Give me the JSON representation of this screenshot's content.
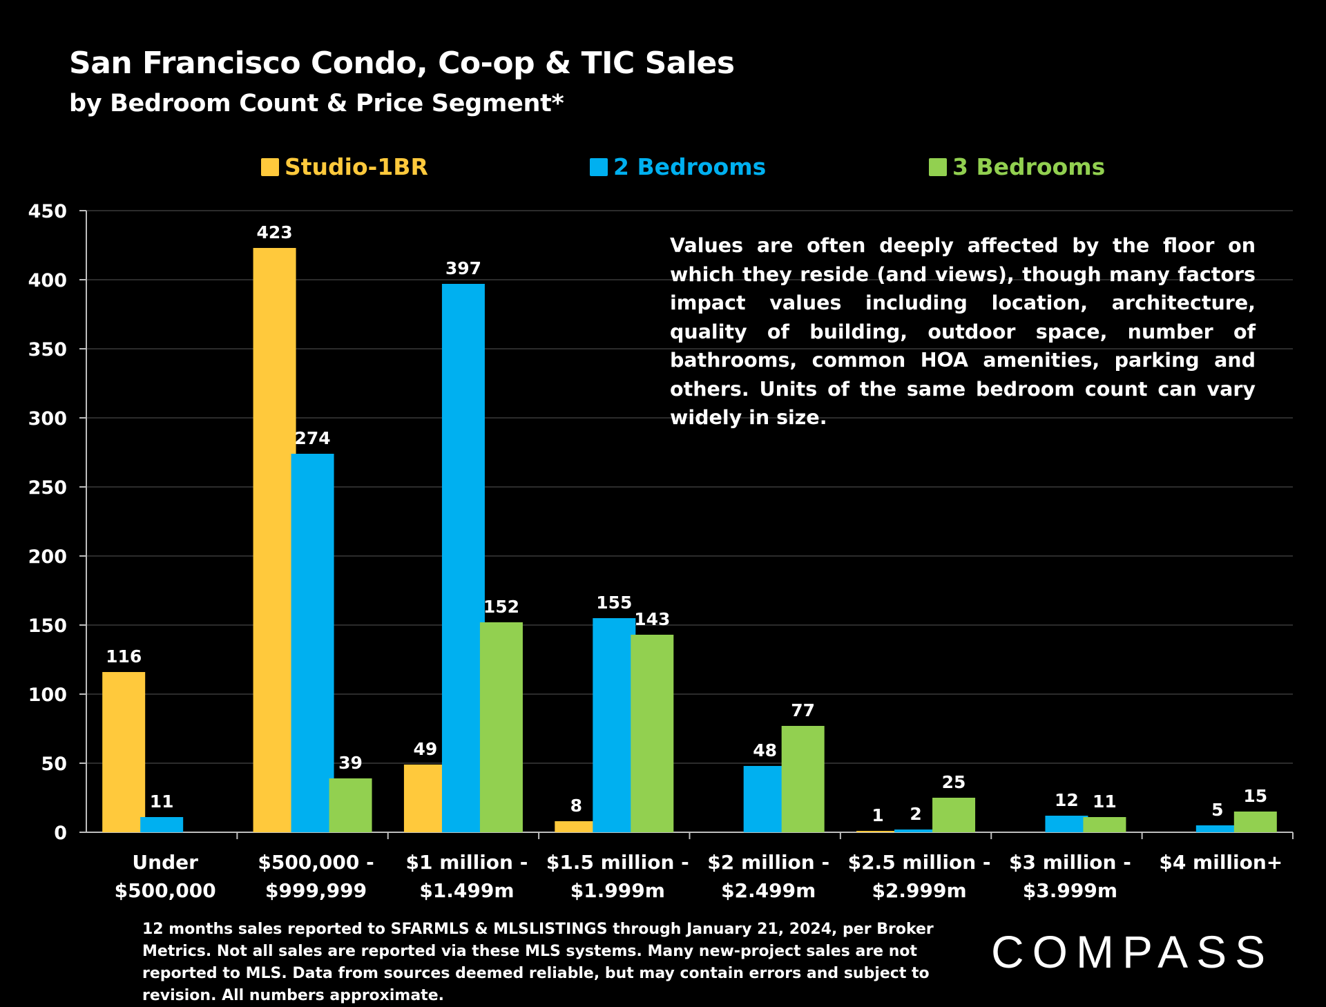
{
  "header": {
    "title": "San Francisco Condo, Co-op & TIC Sales",
    "subtitle": "by Bedroom Count & Price Segment*"
  },
  "annotation": "Values are often deeply affected by the floor on which they reside (and views), though many factors impact values including location, architecture, quality of building, outdoor space, number of bathrooms, common HOA amenities, parking and others. Units of the same bedroom count can vary widely in size.",
  "footnote": "12 months sales reported to SFARMLS & MLSLISTINGS through January 21, 2024, per Broker Metrics. Not all sales are reported via these MLS systems. Many new-project sales are not reported to MLS. Data from sources deemed reliable, but may contain errors and subject to revision. All numbers approximate.",
  "logo": "COMPASS",
  "chart_data": {
    "type": "bar",
    "title": "San Francisco Condo, Co-op & TIC Sales",
    "subtitle": "by Bedroom Count & Price Segment*",
    "xlabel": "",
    "ylabel": "",
    "ylim": [
      0,
      450
    ],
    "yticks": [
      0,
      50,
      100,
      150,
      200,
      250,
      300,
      350,
      400,
      450
    ],
    "grid": true,
    "legend_position": "top",
    "categories": [
      [
        "Under",
        "$500,000"
      ],
      [
        "$500,000 -",
        "$999,999"
      ],
      [
        "$1 million -",
        "$1.499m"
      ],
      [
        "$1.5 million -",
        "$1.999m"
      ],
      [
        "$2 million -",
        "$2.499m"
      ],
      [
        "$2.5 million -",
        "$2.999m"
      ],
      [
        "$3 million -",
        "$3.999m"
      ],
      [
        "$4 million+"
      ]
    ],
    "series": [
      {
        "name": "Studio-1BR",
        "color": "#FFC93C",
        "values": [
          116,
          423,
          49,
          8,
          null,
          1,
          null,
          null
        ]
      },
      {
        "name": "2 Bedrooms",
        "color": "#00B0F0",
        "values": [
          11,
          274,
          397,
          155,
          48,
          2,
          12,
          5
        ]
      },
      {
        "name": "3 Bedrooms",
        "color": "#92D050",
        "values": [
          null,
          39,
          152,
          143,
          77,
          25,
          11,
          15
        ]
      }
    ]
  }
}
